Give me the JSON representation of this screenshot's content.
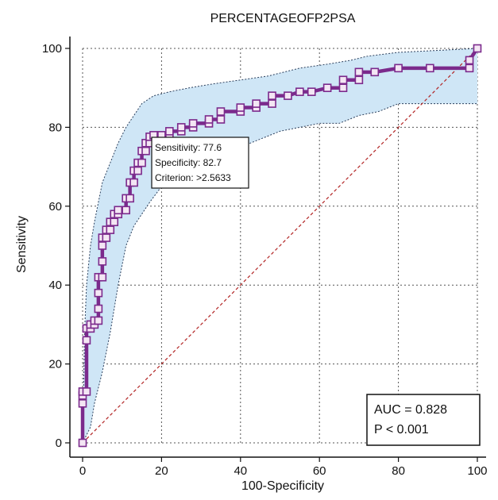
{
  "chart_data": {
    "type": "line",
    "title": "PERCENTAGEOFP2PSA",
    "xlabel": "100-Specificity",
    "ylabel": "Sensitivity",
    "xlim": [
      0,
      100
    ],
    "ylim": [
      0,
      100
    ],
    "xticks": [
      "0",
      "20",
      "40",
      "60",
      "80",
      "100"
    ],
    "yticks": [
      "0",
      "20",
      "40",
      "60",
      "80",
      "100"
    ],
    "grid": true,
    "colors": {
      "curve": "#7b2a8c",
      "marker_fill": "#f4e6f4",
      "confidence_band": "#cfe6f6",
      "band_border": "#2b3f5c",
      "reference": "#b22222",
      "grid": "#555555"
    },
    "roc_curve": {
      "x": [
        0,
        0,
        0,
        0,
        1,
        1,
        1,
        2,
        2,
        3,
        3,
        4,
        4,
        4,
        4,
        5,
        5,
        5,
        5,
        6,
        6,
        7,
        7,
        8,
        8,
        9,
        9,
        11,
        11,
        12,
        12,
        13,
        13,
        14,
        14,
        15,
        15,
        16,
        16,
        17,
        17,
        18,
        20,
        22,
        22,
        25,
        25,
        28,
        28,
        32,
        32,
        35,
        35,
        40,
        40,
        44,
        44,
        48,
        48,
        52,
        55,
        58,
        62,
        66,
        66,
        70,
        70,
        74,
        80,
        88,
        98,
        98,
        100
      ],
      "y": [
        0,
        10,
        12,
        13,
        13,
        26,
        29,
        29,
        30,
        30,
        31,
        31,
        34,
        38,
        42,
        42,
        46,
        50,
        52,
        52,
        54,
        54,
        56,
        56,
        58,
        58,
        59,
        59,
        62,
        62,
        66,
        66,
        69,
        69,
        71,
        71,
        74,
        74,
        76,
        76,
        77.6,
        78,
        78,
        78,
        79,
        79,
        80,
        80,
        81,
        81,
        82,
        82,
        84,
        84,
        85,
        85,
        86,
        86,
        88,
        88,
        89,
        89,
        90,
        90,
        92,
        92,
        94,
        94,
        95,
        95,
        95,
        97,
        100
      ]
    },
    "confidence_band": {
      "upper": {
        "x": [
          0,
          0.5,
          1,
          2,
          3,
          4,
          5,
          7,
          9,
          11,
          13,
          15,
          18,
          22,
          27,
          33,
          40,
          47,
          55,
          62,
          68,
          72,
          80,
          90,
          100
        ],
        "y": [
          0,
          28,
          40,
          50,
          56,
          61,
          66,
          71,
          76,
          80,
          83,
          86,
          88,
          89,
          90,
          91,
          92,
          93,
          95,
          96,
          97,
          98,
          99,
          99.5,
          100
        ]
      },
      "lower": {
        "x": [
          0,
          2,
          3,
          5,
          7,
          9,
          11,
          13,
          15,
          17,
          20,
          25,
          30,
          35,
          40,
          45,
          50,
          55,
          60,
          65,
          70,
          75,
          80,
          90,
          100
        ],
        "y": [
          0,
          4,
          10,
          18,
          28,
          40,
          50,
          55,
          58,
          61,
          65,
          69,
          72,
          74,
          75,
          77,
          79,
          80,
          81,
          81,
          83,
          84,
          86,
          86,
          86
        ]
      }
    },
    "reference_line": {
      "x": [
        0,
        100
      ],
      "y": [
        0,
        100
      ]
    },
    "annotation": {
      "point": [
        17.3,
        77.6
      ],
      "lines": [
        "Sensitivity: 77.6",
        "Specificity: 82.7",
        "Criterion: >2.5633"
      ]
    },
    "stats": {
      "auc": "AUC = 0.828",
      "p_value": "P < 0.001"
    }
  }
}
